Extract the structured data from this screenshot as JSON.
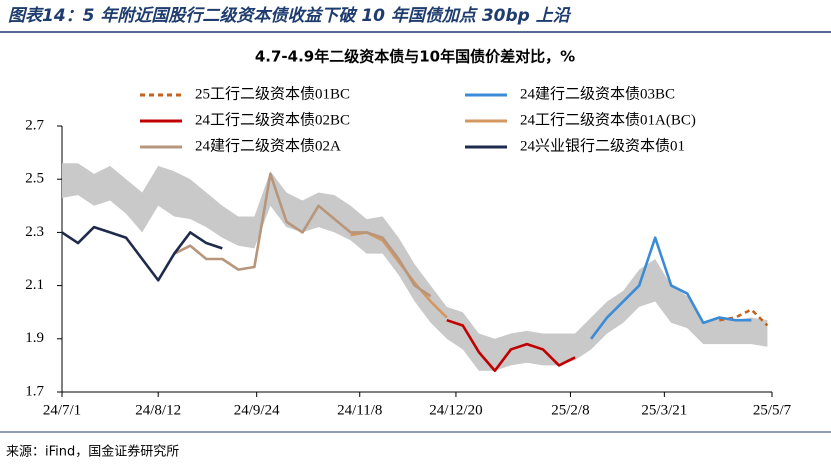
{
  "header": "图表14：5 年附近国股行二级资本债收益下破 10 年国债加点 30bp 上沿",
  "source": "来源：iFind，国金证券研究所",
  "chart_data": {
    "type": "line",
    "title": "4.7-4.9年二级资本债与10年国债价差对比，%",
    "x": [
      "24/7/1",
      "24/7/8",
      "24/7/15",
      "24/7/22",
      "24/7/29",
      "24/8/5",
      "24/8/12",
      "24/8/19",
      "24/8/26",
      "24/9/2",
      "24/9/9",
      "24/9/16",
      "24/9/23",
      "24/9/30",
      "24/10/7",
      "24/10/14",
      "24/10/21",
      "24/10/28",
      "24/11/4",
      "24/11/11",
      "24/11/18",
      "24/11/25",
      "24/12/2",
      "24/12/9",
      "24/12/16",
      "24/12/23",
      "24/12/30",
      "25/1/6",
      "25/1/13",
      "25/1/20",
      "25/1/27",
      "25/2/3",
      "25/2/10",
      "25/2/17",
      "25/2/24",
      "25/3/3",
      "25/3/10",
      "25/3/17",
      "25/3/24",
      "25/3/31",
      "25/4/7",
      "25/4/14",
      "25/4/21",
      "25/4/28",
      "25/5/5"
    ],
    "band": {
      "color": "#c9c9c9",
      "upper": [
        2.56,
        2.56,
        2.52,
        2.55,
        2.5,
        2.45,
        2.55,
        2.53,
        2.5,
        2.45,
        2.4,
        2.36,
        2.36,
        2.53,
        2.45,
        2.42,
        2.45,
        2.44,
        2.4,
        2.35,
        2.36,
        2.28,
        2.18,
        2.1,
        2.02,
        2.0,
        1.92,
        1.9,
        1.92,
        1.93,
        1.92,
        1.92,
        1.92,
        1.98,
        2.04,
        2.08,
        2.16,
        2.2,
        2.1,
        2.06,
        1.96,
        1.98,
        1.97,
        1.98,
        1.97
      ],
      "lower": [
        2.43,
        2.44,
        2.4,
        2.42,
        2.37,
        2.3,
        2.4,
        2.36,
        2.35,
        2.32,
        2.28,
        2.25,
        2.24,
        2.4,
        2.32,
        2.3,
        2.32,
        2.3,
        2.27,
        2.22,
        2.22,
        2.14,
        2.04,
        1.96,
        1.9,
        1.86,
        1.78,
        1.78,
        1.8,
        1.81,
        1.8,
        1.8,
        1.82,
        1.86,
        1.92,
        1.96,
        2.02,
        2.04,
        1.96,
        1.94,
        1.88,
        1.88,
        1.88,
        1.88,
        1.87
      ]
    },
    "series": [
      {
        "name": "25工行二级资本债01BC",
        "color": "#c5621e",
        "dash": true,
        "values": [
          null,
          null,
          null,
          null,
          null,
          null,
          null,
          null,
          null,
          null,
          null,
          null,
          null,
          null,
          null,
          null,
          null,
          null,
          null,
          null,
          null,
          null,
          null,
          null,
          null,
          null,
          null,
          null,
          null,
          null,
          null,
          null,
          null,
          null,
          null,
          null,
          null,
          null,
          null,
          null,
          null,
          1.97,
          1.98,
          2.01,
          1.95
        ]
      },
      {
        "name": "24建行二级资本债03BC",
        "color": "#3b8bd6",
        "dash": false,
        "values": [
          null,
          null,
          null,
          null,
          null,
          null,
          null,
          null,
          null,
          null,
          null,
          null,
          null,
          null,
          null,
          null,
          null,
          null,
          null,
          null,
          null,
          null,
          null,
          null,
          null,
          null,
          null,
          null,
          null,
          null,
          null,
          null,
          null,
          1.9,
          1.98,
          2.04,
          2.1,
          2.28,
          2.1,
          2.07,
          1.96,
          1.98,
          1.97,
          1.97,
          null
        ]
      },
      {
        "name": "24工行二级资本债02BC",
        "color": "#c00000",
        "dash": false,
        "values": [
          null,
          null,
          null,
          null,
          null,
          null,
          null,
          null,
          null,
          null,
          null,
          null,
          null,
          null,
          null,
          null,
          null,
          null,
          null,
          null,
          null,
          null,
          null,
          null,
          1.97,
          1.95,
          1.85,
          1.78,
          1.86,
          1.88,
          1.86,
          1.8,
          1.83,
          null,
          null,
          null,
          null,
          null,
          null,
          null,
          null,
          null,
          null,
          null,
          null
        ]
      },
      {
        "name": "24工行二级资本债01A(BC)",
        "color": "#d4975f",
        "dash": false,
        "values": [
          null,
          null,
          null,
          null,
          null,
          null,
          null,
          null,
          null,
          null,
          null,
          null,
          null,
          null,
          null,
          null,
          null,
          null,
          2.29,
          2.3,
          2.27,
          2.19,
          2.11,
          2.04,
          1.98,
          null,
          null,
          null,
          null,
          null,
          null,
          null,
          null,
          null,
          null,
          null,
          null,
          null,
          null,
          null,
          null,
          null,
          null,
          null,
          null
        ]
      },
      {
        "name": "24建行二级资本债02A",
        "color": "#b7967c",
        "dash": false,
        "values": [
          null,
          null,
          null,
          null,
          null,
          null,
          null,
          2.22,
          2.25,
          2.2,
          2.2,
          2.16,
          2.17,
          2.52,
          2.34,
          2.3,
          2.4,
          2.35,
          2.3,
          2.3,
          2.28,
          2.2,
          2.1,
          2.06,
          null,
          null,
          null,
          null,
          null,
          null,
          null,
          null,
          null,
          null,
          null,
          null,
          null,
          null,
          null,
          null,
          null,
          null,
          null,
          null,
          null
        ]
      },
      {
        "name": "24兴业银行二级资本债01",
        "color": "#1f2b4d",
        "dash": false,
        "values": [
          2.3,
          2.26,
          2.32,
          2.3,
          2.28,
          2.2,
          2.12,
          2.22,
          2.3,
          2.26,
          2.24,
          null,
          null,
          null,
          null,
          null,
          null,
          null,
          null,
          null,
          null,
          null,
          null,
          null,
          null,
          null,
          null,
          null,
          null,
          null,
          null,
          null,
          null,
          null,
          null,
          null,
          null,
          null,
          null,
          null,
          null,
          null,
          null,
          null,
          null
        ]
      }
    ],
    "ylim": [
      1.7,
      2.7
    ],
    "yticks": [
      1.7,
      1.9,
      2.1,
      2.3,
      2.5,
      2.7
    ],
    "xlim": [
      "24/7/1",
      "25/5/7"
    ],
    "xticks": [
      "24/7/1",
      "24/8/12",
      "24/9/24",
      "24/11/8",
      "24/12/20",
      "25/2/8",
      "25/3/21",
      "25/5/7"
    ]
  }
}
